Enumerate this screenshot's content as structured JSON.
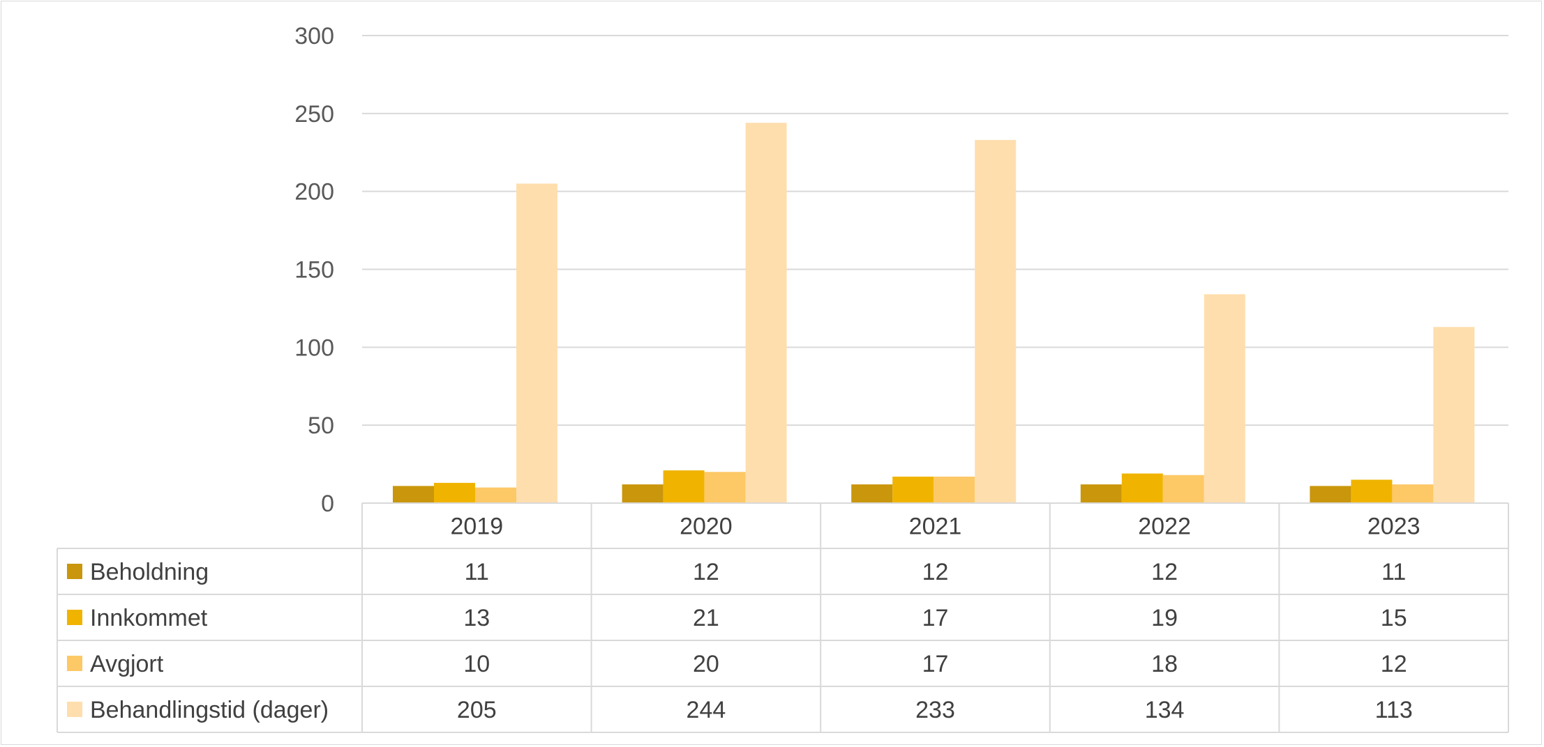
{
  "chart_data": {
    "type": "bar",
    "title": "",
    "xlabel": "",
    "ylabel": "",
    "ylim": [
      0,
      300
    ],
    "yticks": [
      0,
      50,
      100,
      150,
      200,
      250,
      300
    ],
    "grid": true,
    "legend": "data-table",
    "categories": [
      "2019",
      "2020",
      "2021",
      "2022",
      "2023"
    ],
    "series": [
      {
        "name": "Beholdning",
        "color": "#C9960C",
        "values": [
          11,
          12,
          12,
          12,
          11
        ]
      },
      {
        "name": "Innkommet",
        "color": "#F0B400",
        "values": [
          13,
          21,
          17,
          19,
          15
        ]
      },
      {
        "name": "Avgjort",
        "color": "#FDC866",
        "values": [
          10,
          20,
          17,
          18,
          12
        ]
      },
      {
        "name": "Behandlingstid (dager)",
        "color": "#FFDEAD",
        "values": [
          205,
          244,
          233,
          134,
          113
        ]
      }
    ]
  }
}
